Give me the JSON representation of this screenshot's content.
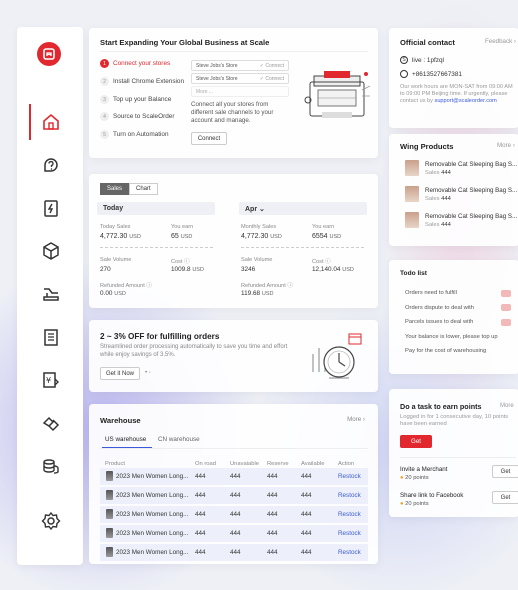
{
  "nav": {
    "items": [
      "home-icon",
      "question-icon",
      "bolt-doc-icon",
      "box-icon",
      "shipping-icon",
      "ledger-icon",
      "currency-exchange-icon",
      "handshake-icon",
      "coins-icon",
      "gear-icon"
    ]
  },
  "start": {
    "title": "Start Expanding Your Global Business at Scale",
    "steps": [
      "Connect your stores",
      "Install Chrome Extension",
      "Top up your Balance",
      "Source to ScaleOrder",
      "Turn on Automation"
    ],
    "stores": [
      {
        "name": "Steve Jobs's Store",
        "tag": "✓ Connect"
      },
      {
        "name": "Steve Jobs's Store",
        "tag": "✓ Connect"
      },
      {
        "name": "More ...",
        "tag": ""
      }
    ],
    "desc": "Connect all your stores from different sale channels to your account and manage.",
    "connect_btn": "Connect"
  },
  "sales": {
    "tabs": [
      "Sales",
      "Chart"
    ],
    "today": {
      "label": "Today",
      "sales_label": "Today Sales",
      "sales_value": "4,772.30",
      "sales_unit": "USD",
      "earn_label": "You earn",
      "earn_value": "65",
      "earn_unit": "USD",
      "volume_label": "Sale Volume",
      "volume_value": "270",
      "cost_label": "Cost ⓘ",
      "cost_value": "1009.8",
      "cost_unit": "USD",
      "refund_label": "Refunded Amount ⓘ",
      "refund_value": "0.00",
      "refund_unit": "USD"
    },
    "month": {
      "label": "Apr ⌄",
      "sales_label": "Monthly Sales",
      "sales_value": "4,772.30",
      "sales_unit": "USD",
      "earn_label": "You earn",
      "earn_value": "6554",
      "earn_unit": "USD",
      "volume_label": "Sale Volume",
      "volume_value": "3246",
      "cost_label": "Cost ⓘ",
      "cost_value": "12,140.04",
      "cost_unit": "USD",
      "refund_label": "Refunded Amount ⓘ",
      "refund_value": "119.68",
      "refund_unit": "USD"
    }
  },
  "promo": {
    "title": "2 ~ 3% OFF for fulfilling orders",
    "desc": "Streamlined order processing automatically to save you time and effort while enjoy savings of 3.5%.",
    "btn": "Get it Now"
  },
  "warehouse": {
    "title": "Warehouse",
    "more": "More ›",
    "tabs": [
      "US warehouse",
      "CN warehouse"
    ],
    "columns": [
      "Product",
      "On road",
      "Unavaiable",
      "Reserve",
      "Available",
      "Action"
    ],
    "rows": [
      {
        "product": "2023 Men Women Long...",
        "on_road": "444",
        "unavailable": "444",
        "reserve": "444",
        "available": "444",
        "action": "Restock"
      },
      {
        "product": "2023 Men Women Long...",
        "on_road": "444",
        "unavailable": "444",
        "reserve": "444",
        "available": "444",
        "action": "Restock"
      },
      {
        "product": "2023 Men Women Long...",
        "on_road": "444",
        "unavailable": "444",
        "reserve": "444",
        "available": "444",
        "action": "Restock"
      },
      {
        "product": "2023 Men Women Long...",
        "on_road": "444",
        "unavailable": "444",
        "reserve": "444",
        "available": "444",
        "action": "Restock"
      },
      {
        "product": "2023 Men Women Long...",
        "on_road": "444",
        "unavailable": "444",
        "reserve": "444",
        "available": "444",
        "action": "Restock"
      }
    ]
  },
  "contact": {
    "title": "Official contact",
    "feedback": "Feedback ›",
    "skype": "live : 1pfzql",
    "whatsapp": "+8613527667381",
    "hours_pre": "Our work hours are MON-SAT from 09:00 AM to 09:00 PM Beijing time. If urgently, please contact us by ",
    "email": "support@scaleorder.com"
  },
  "wing": {
    "title": "Wing Products",
    "more": "More ›",
    "items": [
      {
        "name": "Removable Cat Sleeping Bag S...",
        "sales_label": "Sales",
        "sales": "444"
      },
      {
        "name": "Removable Cat Sleeping Bag S...",
        "sales_label": "Sales",
        "sales": "444"
      },
      {
        "name": "Removable Cat Sleeping Bag S...",
        "sales_label": "Sales",
        "sales": "444"
      }
    ]
  },
  "todo": {
    "title": "Todo list",
    "items": [
      "Orders need to fulfill",
      "Orders dispute to deal with",
      "Parcels issues to deal with",
      "Your balance is lower, please top up",
      "Pay for the cost of warehousing"
    ]
  },
  "task": {
    "title": "Do a task to earn points",
    "more": "More",
    "desc": "Logged in for 1 consecutive day, 10 points have been earned",
    "get_btn": "Get",
    "rewards": [
      {
        "title": "Invite a Merchant",
        "points": "20 points",
        "btn": "Get"
      },
      {
        "title": "Share link to Facebook",
        "points": "20 points",
        "btn": "Get"
      }
    ]
  }
}
